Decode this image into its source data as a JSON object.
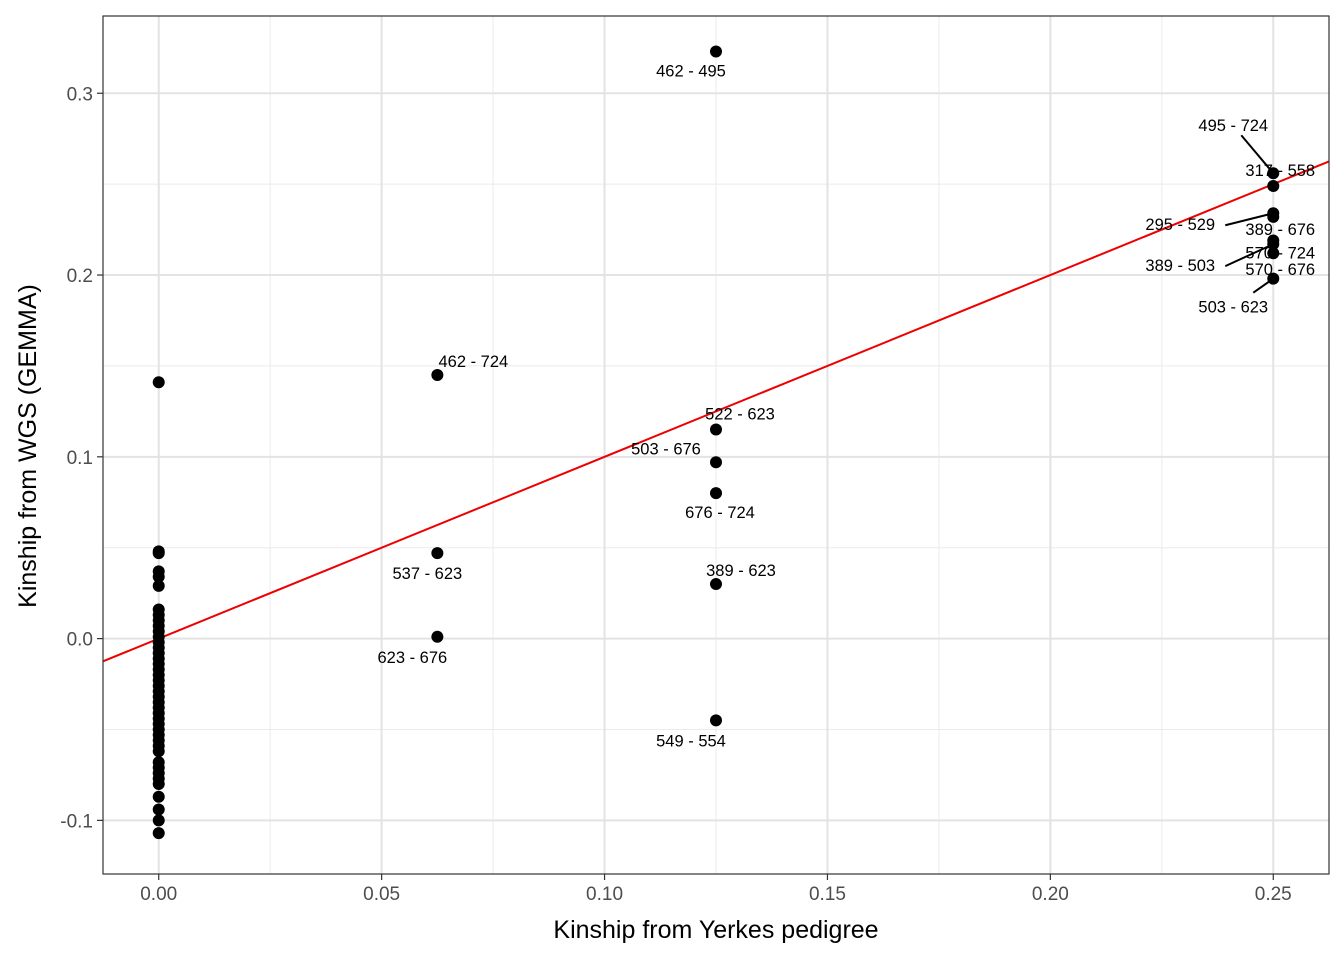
{
  "chart_data": {
    "type": "scatter",
    "title": "",
    "xlabel": "Kinship from Yerkes pedigree",
    "ylabel": "Kinship from WGS (GEMMA)",
    "xlim": [
      -0.0125,
      0.2625
    ],
    "ylim": [
      -0.1295,
      0.3425
    ],
    "x_ticks": [
      0.0,
      0.05,
      0.1,
      0.15,
      0.2,
      0.25
    ],
    "x_tick_labels": [
      "0.00",
      "0.05",
      "0.10",
      "0.15",
      "0.20",
      "0.25"
    ],
    "y_ticks": [
      -0.1,
      0.0,
      0.1,
      0.2,
      0.3
    ],
    "y_tick_labels": [
      "-0.1",
      "0.0",
      "0.1",
      "0.2",
      "0.3"
    ],
    "grid": true,
    "theme": "bw",
    "point_color": "#000000",
    "fit_line": {
      "color": "#ee0000",
      "intercept": 0.0,
      "slope": 1.0
    },
    "points": [
      {
        "x": 0.0,
        "y": 0.141
      },
      {
        "x": 0.0,
        "y": 0.048
      },
      {
        "x": 0.0,
        "y": 0.047
      },
      {
        "x": 0.0,
        "y": 0.037
      },
      {
        "x": 0.0,
        "y": 0.034
      },
      {
        "x": 0.0,
        "y": 0.029
      },
      {
        "x": 0.0,
        "y": 0.016
      },
      {
        "x": 0.0,
        "y": 0.013
      },
      {
        "x": 0.0,
        "y": 0.01
      },
      {
        "x": 0.0,
        "y": 0.007
      },
      {
        "x": 0.0,
        "y": 0.004
      },
      {
        "x": 0.0,
        "y": 0.001
      },
      {
        "x": 0.0,
        "y": -0.002
      },
      {
        "x": 0.0,
        "y": -0.005
      },
      {
        "x": 0.0,
        "y": -0.008
      },
      {
        "x": 0.0,
        "y": -0.011
      },
      {
        "x": 0.0,
        "y": -0.014
      },
      {
        "x": 0.0,
        "y": -0.017
      },
      {
        "x": 0.0,
        "y": -0.02
      },
      {
        "x": 0.0,
        "y": -0.023
      },
      {
        "x": 0.0,
        "y": -0.026
      },
      {
        "x": 0.0,
        "y": -0.029
      },
      {
        "x": 0.0,
        "y": -0.032
      },
      {
        "x": 0.0,
        "y": -0.035
      },
      {
        "x": 0.0,
        "y": -0.038
      },
      {
        "x": 0.0,
        "y": -0.041
      },
      {
        "x": 0.0,
        "y": -0.044
      },
      {
        "x": 0.0,
        "y": -0.047
      },
      {
        "x": 0.0,
        "y": -0.05
      },
      {
        "x": 0.0,
        "y": -0.053
      },
      {
        "x": 0.0,
        "y": -0.056
      },
      {
        "x": 0.0,
        "y": -0.059
      },
      {
        "x": 0.0,
        "y": -0.062
      },
      {
        "x": 0.0,
        "y": -0.068
      },
      {
        "x": 0.0,
        "y": -0.071
      },
      {
        "x": 0.0,
        "y": -0.074
      },
      {
        "x": 0.0,
        "y": -0.077
      },
      {
        "x": 0.0,
        "y": -0.08
      },
      {
        "x": 0.0,
        "y": -0.087
      },
      {
        "x": 0.0,
        "y": -0.094
      },
      {
        "x": 0.0,
        "y": -0.1
      },
      {
        "x": 0.0,
        "y": -0.107
      },
      {
        "x": 0.0625,
        "y": 0.145,
        "label": "462 - 724"
      },
      {
        "x": 0.0625,
        "y": 0.047,
        "label": "537 - 623"
      },
      {
        "x": 0.0625,
        "y": 0.001,
        "label": "623 - 676"
      },
      {
        "x": 0.125,
        "y": 0.323,
        "label": "462 - 495"
      },
      {
        "x": 0.125,
        "y": 0.115,
        "label": "522 - 623"
      },
      {
        "x": 0.125,
        "y": 0.097,
        "label": "503 - 676"
      },
      {
        "x": 0.125,
        "y": 0.08,
        "label": "676 - 724"
      },
      {
        "x": 0.125,
        "y": 0.03,
        "label": "389 - 623"
      },
      {
        "x": 0.125,
        "y": -0.045,
        "label": "549 - 554"
      },
      {
        "x": 0.25,
        "y": 0.256,
        "label": "495 - 724"
      },
      {
        "x": 0.25,
        "y": 0.249,
        "label": "317 - 558"
      },
      {
        "x": 0.25,
        "y": 0.234,
        "label": "295 - 529"
      },
      {
        "x": 0.25,
        "y": 0.232,
        "label": "389 - 676"
      },
      {
        "x": 0.25,
        "y": 0.219,
        "label": "570 - 724"
      },
      {
        "x": 0.25,
        "y": 0.217,
        "label": "389 - 503"
      },
      {
        "x": 0.25,
        "y": 0.212,
        "label": "570 - 676"
      },
      {
        "x": 0.25,
        "y": 0.198,
        "label": "503 - 623"
      }
    ]
  }
}
